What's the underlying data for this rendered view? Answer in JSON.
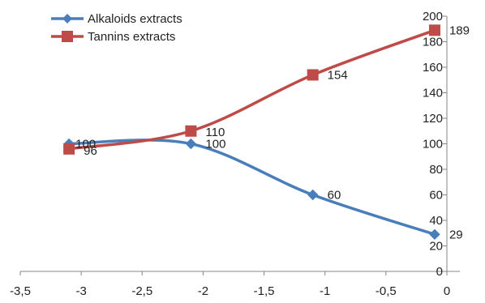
{
  "chart_data": {
    "type": "line",
    "title": "",
    "xlabel": "",
    "ylabel": "",
    "xlim": [
      -3.5,
      0
    ],
    "ylim": [
      0,
      200
    ],
    "x_ticks": [
      "-3,5",
      "-3",
      "-2,5",
      "-2",
      "-1,5",
      "-1",
      "-0,5",
      "0"
    ],
    "y_ticks": [
      "0",
      "20",
      "40",
      "60",
      "80",
      "100",
      "120",
      "140",
      "160",
      "180",
      "200"
    ],
    "grid": false,
    "legend_position": "top-left",
    "y_axis_position": "right",
    "series": [
      {
        "name": "Alkaloids extracts",
        "color": "#4a7ebb",
        "marker": "diamond",
        "x": [
          -3.1,
          -2.1,
          -1.1,
          -0.1
        ],
        "y": [
          100,
          100,
          60,
          29
        ],
        "labels": [
          "100",
          "100",
          "60",
          "29"
        ]
      },
      {
        "name": "Tannins extracts",
        "color": "#be4b48",
        "marker": "square",
        "x": [
          -3.1,
          -2.1,
          -1.1,
          -0.1
        ],
        "y": [
          96,
          110,
          154,
          189
        ],
        "labels": [
          "96",
          "110",
          "154",
          "189"
        ]
      }
    ]
  }
}
